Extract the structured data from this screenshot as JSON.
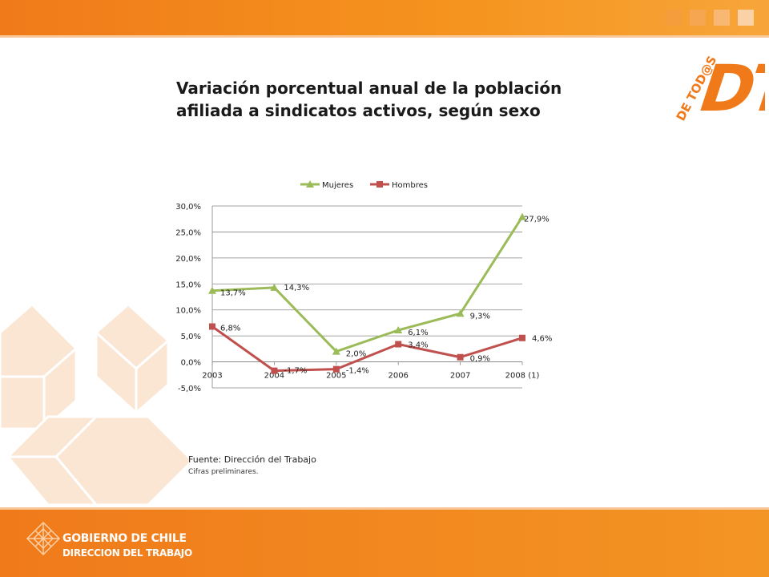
{
  "slide": {
    "title_line1": "Variación porcentual anual de la población",
    "title_line2": "afiliada a sindicatos activos, según sexo",
    "source": "Fuente: Dirección del Trabajo",
    "note": "Cifras preliminares.",
    "gov_line1": "GOBIERNO DE CHILE",
    "gov_line2": "DIRECCION DEL TRABAJO",
    "dt_side_text": "DE TOD@S",
    "dt_big_text": "DT"
  },
  "colors": {
    "orange": "#f07a1a",
    "mujeres": "#9bbb59",
    "hombres": "#c0504d",
    "grid": "#868686"
  },
  "chart_data": {
    "type": "line",
    "categories": [
      "2003",
      "2004",
      "2005",
      "2006",
      "2007",
      "2008 (1)"
    ],
    "series": [
      {
        "name": "Mujeres",
        "values": [
          13.7,
          14.3,
          2.0,
          6.1,
          9.3,
          27.9
        ],
        "labels": [
          "13,7%",
          "14,3%",
          "2,0%",
          "6,1%",
          "9,3%",
          "27,9%"
        ]
      },
      {
        "name": "Hombres",
        "values": [
          6.8,
          -1.7,
          -1.4,
          3.4,
          0.9,
          4.6
        ],
        "labels": [
          "6,8%",
          "-1,7%",
          "-1,4%",
          "3,4%",
          "0,9%",
          "4,6%"
        ]
      }
    ],
    "ylim": [
      -5,
      30
    ],
    "yticks": [
      -5,
      0,
      5,
      10,
      15,
      20,
      25,
      30
    ],
    "ytick_labels": [
      "-5,0%",
      "0,0%",
      "5,0%",
      "10,0%",
      "15,0%",
      "20,0%",
      "25,0%",
      "30,0%"
    ],
    "grid": true,
    "legend": "top"
  }
}
